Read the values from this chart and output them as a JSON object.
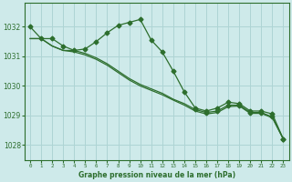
{
  "bg_color": "#ceeaea",
  "grid_color": "#aed4d4",
  "line_color": "#2d6e2d",
  "ylim": [
    1027.5,
    1032.8
  ],
  "xlim": [
    -0.5,
    23.5
  ],
  "yticks": [
    1028,
    1029,
    1030,
    1031,
    1032
  ],
  "xticks": [
    0,
    1,
    2,
    3,
    4,
    5,
    6,
    7,
    8,
    9,
    10,
    11,
    12,
    13,
    14,
    15,
    16,
    17,
    18,
    19,
    20,
    21,
    22,
    23
  ],
  "xlabel": "Graphe pression niveau de la mer (hPa)",
  "s1": [
    1032.0,
    1031.6,
    1031.6,
    1031.35,
    1031.2,
    1031.25,
    1031.5,
    1031.8,
    1032.05,
    1032.15,
    1032.25,
    1031.55,
    1031.15,
    1030.5,
    1029.8,
    1029.25,
    1029.15,
    1029.25,
    1029.45,
    1029.4,
    1029.15,
    1029.15,
    1029.05,
    1028.2
  ],
  "s2": [
    1031.6,
    1031.6,
    1031.35,
    1031.2,
    1031.2,
    1031.1,
    1030.95,
    1030.75,
    1030.5,
    1030.25,
    1030.05,
    1029.9,
    1029.75,
    1029.55,
    1029.4,
    1029.2,
    1029.1,
    1029.15,
    1029.35,
    1029.35,
    1029.1,
    1029.1,
    1028.95,
    1028.2
  ],
  "s3": [
    1031.6,
    1031.6,
    1031.35,
    1031.2,
    1031.15,
    1031.05,
    1030.9,
    1030.7,
    1030.45,
    1030.2,
    1030.0,
    1029.85,
    1029.7,
    1029.52,
    1029.35,
    1029.15,
    1029.05,
    1029.1,
    1029.3,
    1029.32,
    1029.07,
    1029.07,
    1028.92,
    1028.2
  ],
  "s1_markers": [
    0,
    1,
    2,
    3,
    4,
    5,
    6,
    7,
    8,
    9,
    10,
    11,
    12,
    13,
    14,
    15,
    16,
    17,
    18,
    19,
    20,
    21,
    22,
    23
  ],
  "s2_markers": [
    15,
    16,
    17,
    18,
    19,
    20,
    21,
    22,
    23
  ],
  "s3_markers": []
}
